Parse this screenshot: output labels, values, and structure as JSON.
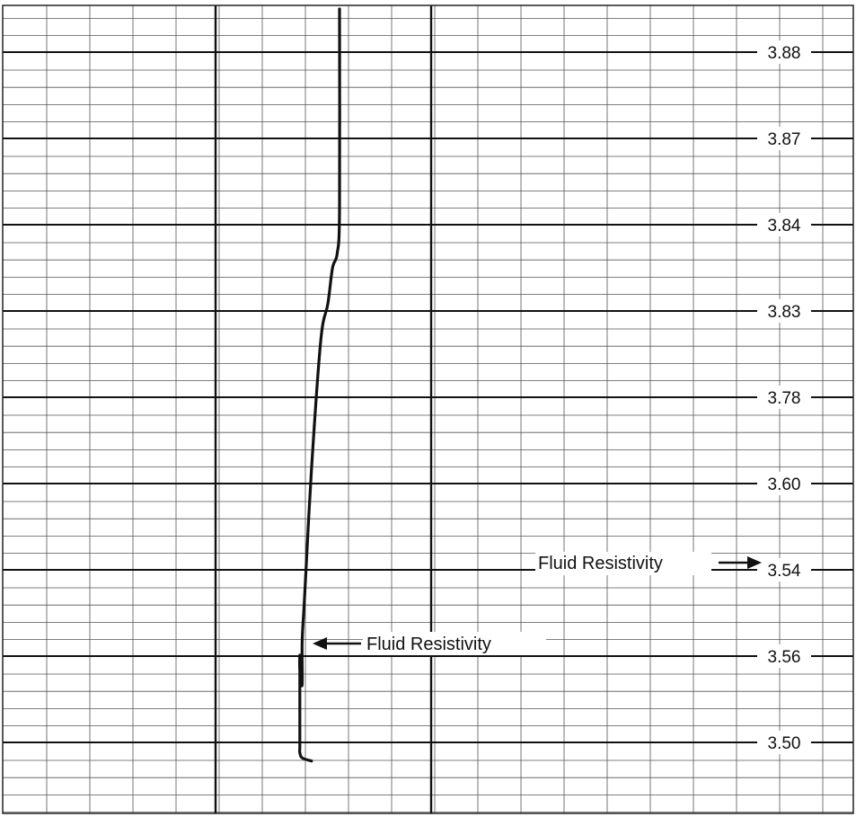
{
  "chart_data": {
    "type": "line",
    "title": "",
    "xlabel": "",
    "ylabel": "",
    "grid": true,
    "tick_labels": [
      "3.88",
      "3.87",
      "3.84",
      "3.83",
      "3.78",
      "3.60",
      "3.54",
      "3.56",
      "3.50"
    ],
    "annotations": [
      {
        "text": "Fluid Resistivity",
        "arrow": "points-left-to-curve"
      },
      {
        "text": "Fluid Resistivity",
        "arrow": "points-right-to-3.54"
      }
    ],
    "series": [
      {
        "x": [
          0.0,
          0.0,
          -0.01,
          -0.03,
          -0.05,
          -0.08,
          -0.12,
          -0.15,
          -0.16,
          -0.16,
          -0.17,
          -0.17,
          -0.17,
          -0.17,
          -0.17,
          -0.17,
          -0.16,
          -0.12
        ],
        "y": [
          3.885,
          3.87,
          3.84,
          3.83,
          3.805,
          3.78,
          3.69,
          3.6,
          3.57,
          3.54,
          3.55,
          3.56,
          3.53,
          3.5,
          3.495,
          3.49,
          3.485,
          3.482
        ],
        "color": "#111111"
      }
    ]
  }
}
